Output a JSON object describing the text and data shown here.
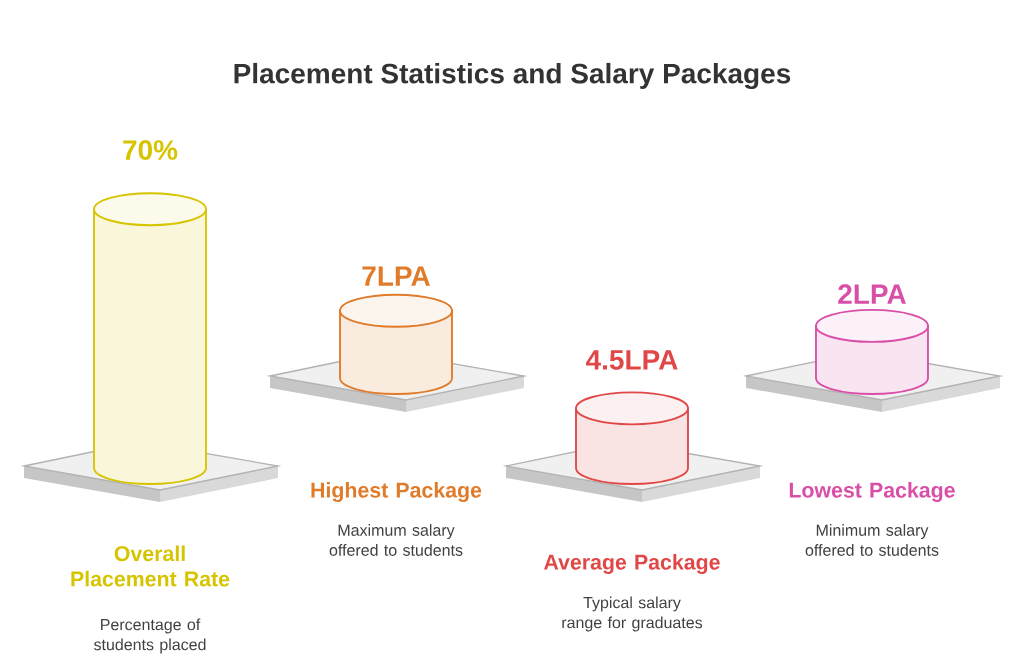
{
  "chart_data": {
    "type": "other",
    "title": "Placement Statistics and Salary Packages",
    "categories": [
      "Overall Placement Rate",
      "Highest Package",
      "Average Package",
      "Lowest Package"
    ],
    "values": [
      70,
      7,
      4.5,
      2
    ],
    "value_labels": [
      "70%",
      "7LPA",
      "4.5LPA",
      "2LPA"
    ],
    "annotations": [
      "Percentage of students placed",
      "Maximum salary offered to students",
      "Typical salary range for graduates",
      "Minimum salary offered to students"
    ],
    "colors": [
      "#d6c400",
      "#e07b2a",
      "#e04848",
      "#d94fa8"
    ]
  }
}
